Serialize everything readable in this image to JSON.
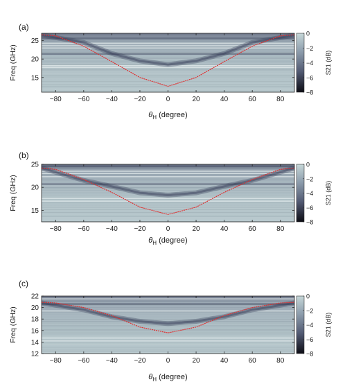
{
  "chart_data": [
    {
      "type": "heatmap",
      "panel_label": "(a)",
      "xlabel_symbol": "θ",
      "xlabel_sub": "H",
      "xlabel_rest": " (degree)",
      "ylabel": "Freq (GHz)",
      "xlim": [
        -90,
        90
      ],
      "ylim": [
        11,
        27
      ],
      "xticks": [
        -80,
        -60,
        -40,
        -20,
        0,
        20,
        40,
        60,
        80
      ],
      "yticks": [
        15,
        20,
        25
      ],
      "colorbar": {
        "label": "S21 (dB)",
        "range": [
          -8,
          0
        ],
        "ticks": [
          0,
          -2,
          -4,
          -6,
          -8
        ]
      },
      "fit_curve": {
        "color": "#e03030",
        "x": [
          -90,
          -80,
          -60,
          -40,
          -20,
          0,
          20,
          40,
          60,
          80,
          90
        ],
        "y": [
          26.6,
          26.3,
          23.5,
          19.3,
          15.0,
          12.6,
          15.0,
          19.3,
          23.5,
          26.3,
          26.6
        ]
      },
      "features": {
        "light_bands": [
          23.0,
          23.6,
          24.3,
          18.2,
          17.7
        ],
        "dark_band_edges": [
          25.6,
          21.4
        ],
        "dark_curve": {
          "x": [
            -90,
            -60,
            -40,
            -20,
            0,
            20,
            40,
            60,
            90
          ],
          "y": [
            26.5,
            24.5,
            21.5,
            19.5,
            18.5,
            19.5,
            21.5,
            24.5,
            26.5
          ]
        }
      }
    },
    {
      "type": "heatmap",
      "panel_label": "(b)",
      "xlabel_symbol": "θ",
      "xlabel_sub": "H",
      "xlabel_rest": " (degree)",
      "ylabel": "Freq (GHz)",
      "xlim": [
        -90,
        90
      ],
      "ylim": [
        12.5,
        25
      ],
      "xticks": [
        -80,
        -60,
        -40,
        -20,
        0,
        20,
        40,
        60,
        80
      ],
      "yticks": [
        15,
        20,
        25
      ],
      "colorbar": {
        "label": "S21 (dB)",
        "range": [
          -8,
          0
        ],
        "ticks": [
          0,
          -2,
          -4,
          -6,
          -8
        ]
      },
      "fit_curve": {
        "color": "#e03030",
        "x": [
          -90,
          -80,
          -60,
          -40,
          -20,
          0,
          20,
          40,
          60,
          80,
          90
        ],
        "y": [
          24.2,
          23.9,
          21.7,
          18.9,
          15.7,
          14.1,
          15.7,
          18.9,
          21.7,
          23.9,
          24.2
        ]
      },
      "features": {
        "light_bands": [
          23.5,
          23.0,
          22.3,
          17.6,
          17.0
        ],
        "dark_band_edges": [
          24.6,
          20.7
        ],
        "dark_curve": {
          "x": [
            -90,
            -60,
            -40,
            -20,
            0,
            20,
            40,
            60,
            90
          ],
          "y": [
            24.2,
            21.5,
            20.2,
            18.8,
            18.3,
            18.8,
            20.2,
            21.5,
            24.2
          ]
        }
      }
    },
    {
      "type": "heatmap",
      "panel_label": "(c)",
      "xlabel_symbol": "θ",
      "xlabel_sub": "H",
      "xlabel_rest": " (degree)",
      "ylabel": "Freq (GHz)",
      "xlim": [
        -90,
        90
      ],
      "ylim": [
        12,
        22
      ],
      "xticks": [
        -80,
        -60,
        -40,
        -20,
        0,
        20,
        40,
        60,
        80
      ],
      "yticks": [
        12,
        14,
        16,
        18,
        20,
        22
      ],
      "colorbar": {
        "label": "S21 (dB)",
        "range": [
          -8,
          0
        ],
        "ticks": [
          0,
          -2,
          -4,
          -6,
          -8
        ]
      },
      "fit_curve": {
        "color": "#e03030",
        "x": [
          -90,
          -80,
          -60,
          -40,
          -20,
          0,
          20,
          40,
          60,
          80,
          90
        ],
        "y": [
          20.9,
          20.8,
          20.0,
          18.6,
          16.6,
          15.6,
          16.6,
          18.6,
          20.0,
          20.8,
          20.9
        ]
      },
      "features": {
        "light_bands": [
          21.5,
          19.4,
          14.7,
          14.2
        ],
        "dark_band_edges": [
          20.6
        ],
        "dark_curve": {
          "x": [
            -90,
            -60,
            -40,
            -20,
            0,
            20,
            40,
            60,
            90
          ],
          "y": [
            20.8,
            19.6,
            18.4,
            17.6,
            17.2,
            17.6,
            18.4,
            19.6,
            20.8
          ]
        }
      }
    }
  ]
}
